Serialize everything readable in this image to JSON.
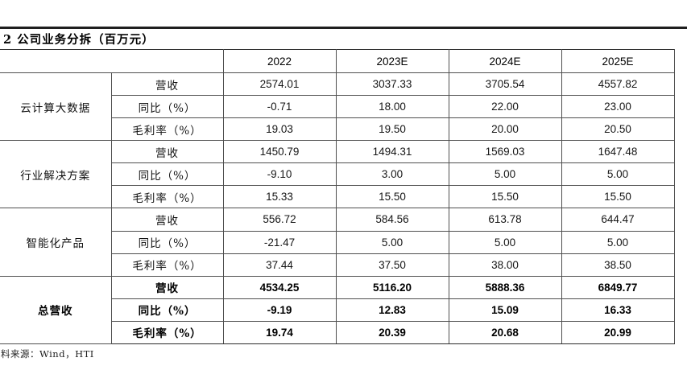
{
  "title": "2 公司业务分拆（百万元）",
  "footer": {
    "source": "料来源：Wind，HTI"
  },
  "chart_data": {
    "type": "table",
    "title": "公司业务分拆（百万元）",
    "columns": [
      "2022",
      "2023E",
      "2024E",
      "2025E"
    ],
    "groups": [
      {
        "name": "云计算大数据",
        "rows": [
          {
            "label": "营收",
            "values": [
              "2574.01",
              "3037.33",
              "3705.54",
              "4557.82"
            ]
          },
          {
            "label": "同比（%）",
            "values": [
              "-0.71",
              "18.00",
              "22.00",
              "23.00"
            ]
          },
          {
            "label": "毛利率（%）",
            "values": [
              "19.03",
              "19.50",
              "20.00",
              "20.50"
            ]
          }
        ]
      },
      {
        "name": "行业解决方案",
        "rows": [
          {
            "label": "营收",
            "values": [
              "1450.79",
              "1494.31",
              "1569.03",
              "1647.48"
            ]
          },
          {
            "label": "同比（%）",
            "values": [
              "-9.10",
              "3.00",
              "5.00",
              "5.00"
            ]
          },
          {
            "label": "毛利率（%）",
            "values": [
              "15.33",
              "15.50",
              "15.50",
              "15.50"
            ]
          }
        ]
      },
      {
        "name": "智能化产品",
        "rows": [
          {
            "label": "营收",
            "values": [
              "556.72",
              "584.56",
              "613.78",
              "644.47"
            ]
          },
          {
            "label": "同比（%）",
            "values": [
              "-21.47",
              "5.00",
              "5.00",
              "5.00"
            ]
          },
          {
            "label": "毛利率（%）",
            "values": [
              "37.44",
              "37.50",
              "38.00",
              "38.50"
            ]
          }
        ]
      },
      {
        "name": "总营收",
        "rows": [
          {
            "label": "营收",
            "values": [
              "4534.25",
              "5116.20",
              "5888.36",
              "6849.77"
            ]
          },
          {
            "label": "同比（%）",
            "values": [
              "-9.19",
              "12.83",
              "15.09",
              "16.33"
            ]
          },
          {
            "label": "毛利率（%）",
            "values": [
              "19.74",
              "20.39",
              "20.68",
              "20.99"
            ]
          }
        ]
      }
    ]
  }
}
